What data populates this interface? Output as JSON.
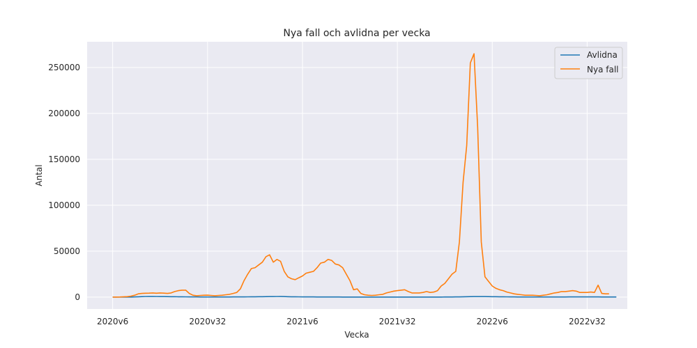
{
  "chart_data": {
    "type": "line",
    "title": "Nya fall och avlidna per vecka",
    "xlabel": "Vecka",
    "ylabel": "Antal",
    "x_tick_labels": [
      "2020v6",
      "2020v32",
      "2021v6",
      "2021v32",
      "2022v6",
      "2022v32"
    ],
    "y_tick_labels": [
      "0",
      "50000",
      "100000",
      "150000",
      "200000",
      "250000"
    ],
    "y_ticks": [
      0,
      50000,
      100000,
      150000,
      200000,
      250000
    ],
    "ylim": [
      -13000,
      278000
    ],
    "xlim": [
      -7,
      141
    ],
    "grid": true,
    "legend_position": "top-right",
    "series": [
      {
        "name": "Avlidna",
        "color": "#1f77b4",
        "values": [
          0,
          0,
          0,
          0,
          0,
          20,
          150,
          300,
          500,
          650,
          700,
          700,
          650,
          600,
          550,
          500,
          450,
          400,
          350,
          300,
          250,
          200,
          150,
          150,
          120,
          100,
          90,
          80,
          80,
          80,
          90,
          100,
          120,
          150,
          180,
          200,
          220,
          260,
          300,
          350,
          400,
          450,
          500,
          550,
          600,
          650,
          700,
          600,
          450,
          350,
          300,
          250,
          200,
          180,
          160,
          150,
          140,
          130,
          120,
          110,
          100,
          90,
          80,
          70,
          60,
          55,
          50,
          45,
          40,
          35,
          30,
          28,
          26,
          24,
          22,
          20,
          18,
          17,
          16,
          15,
          15,
          15,
          15,
          15,
          15,
          20,
          25,
          30,
          40,
          50,
          60,
          80,
          100,
          130,
          160,
          200,
          300,
          400,
          500,
          600,
          650,
          600,
          550,
          500,
          450,
          400,
          350,
          300,
          250,
          200,
          150,
          120,
          100,
          90,
          80,
          80,
          80,
          80,
          80,
          80,
          80,
          90,
          100,
          120,
          140,
          160,
          180,
          200,
          220,
          240,
          200,
          180,
          160,
          150,
          140,
          130,
          120,
          110,
          100
        ]
      },
      {
        "name": "Nya fall",
        "color": "#ff7f0e",
        "values": [
          0,
          0,
          100,
          300,
          500,
          1000,
          2000,
          3500,
          4000,
          4200,
          4300,
          4500,
          4200,
          4500,
          4300,
          4000,
          4500,
          6000,
          7000,
          7500,
          7500,
          4000,
          2000,
          1500,
          1800,
          2000,
          2100,
          1800,
          1500,
          1800,
          2000,
          2500,
          3000,
          4000,
          5000,
          9000,
          18000,
          25000,
          31000,
          32000,
          35000,
          38000,
          44000,
          46000,
          38000,
          41000,
          39000,
          28000,
          22000,
          20000,
          19000,
          21000,
          23000,
          26000,
          27000,
          28000,
          32000,
          37000,
          38000,
          41000,
          40000,
          36000,
          35000,
          32000,
          25000,
          18000,
          8000,
          9000,
          4000,
          2500,
          2000,
          1800,
          2000,
          2500,
          3000,
          4500,
          5500,
          6500,
          7000,
          7500,
          8000,
          6000,
          4500,
          4500,
          4500,
          5000,
          6000,
          5000,
          5500,
          7000,
          12000,
          15000,
          20000,
          25000,
          28000,
          60000,
          125000,
          165000,
          255000,
          265000,
          185000,
          60000,
          22000,
          17000,
          12000,
          9500,
          8000,
          7000,
          5500,
          4500,
          3500,
          3000,
          2500,
          2000,
          2000,
          2000,
          1800,
          1500,
          2000,
          2500,
          3500,
          4500,
          5000,
          6000,
          6000,
          6500,
          7000,
          6500,
          5000,
          5000,
          5000,
          5500,
          5000,
          13000,
          4000,
          3500,
          3500
        ]
      }
    ]
  }
}
